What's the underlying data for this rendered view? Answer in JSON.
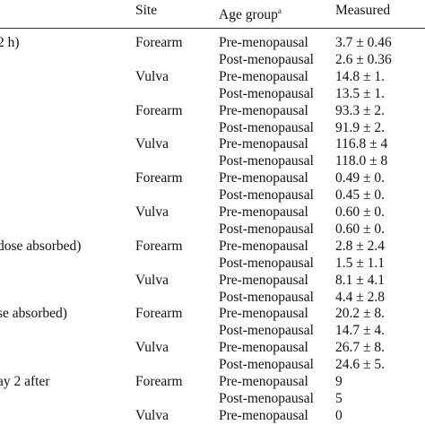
{
  "header": {
    "site": "Site",
    "age_group": "Age group",
    "age_group_note": "a",
    "measured": "Measured"
  },
  "rows": [
    {
      "label": "2 h)",
      "site": "Forearm",
      "age": "Pre-menopausal",
      "value": "3.7 ± 0.46"
    },
    {
      "age": "Post-menopausal",
      "value": "2.6 ± 0.36"
    },
    {
      "site": "Vulva",
      "age": "Pre-menopausal",
      "value": "14.8 ± 1."
    },
    {
      "age": "Post-menopausal",
      "value": "13.5 ± 1."
    },
    {
      "site": "Forearm",
      "age": "Pre-menopausal",
      "value": "93.3 ± 2."
    },
    {
      "age": "Post-menopausal",
      "value": "91.9 ± 2."
    },
    {
      "site": "Vulva",
      "age": "Pre-menopausal",
      "value": "116.8 ± 4"
    },
    {
      "age": "Post-menopausal",
      "value": "118.0 ± 8"
    },
    {
      "site": "Forearm",
      "age": "Pre-menopausal",
      "value": "0.49 ± 0."
    },
    {
      "age": "Post-menopausal",
      "value": "0.45 ± 0."
    },
    {
      "site": "Vulva",
      "age": "Pre-menopausal",
      "value": "0.60 ± 0."
    },
    {
      "age": "Post-menopausal",
      "value": "0.60 ± 0."
    },
    {
      "label": "dose absorbed)",
      "site": "Forearm",
      "age": "Pre-menopausal",
      "value": "2.8 ± 2.4"
    },
    {
      "age": "Post-menopausal",
      "value": "1.5 ± 1.1"
    },
    {
      "site": "Vulva",
      "age": "Pre-menopausal",
      "value": "8.1 ± 4.1"
    },
    {
      "age": "Post-menopausal",
      "value": "4.4 ± 2.8"
    },
    {
      "label": "se absorbed)",
      "site": "Forearm",
      "age": "Pre-menopausal",
      "value": "20.2 ± 8."
    },
    {
      "age": "Post-menopausal",
      "value": "14.7 ± 4."
    },
    {
      "site": "Vulva",
      "age": "Pre-menopausal",
      "value": "26.7 ± 8."
    },
    {
      "age": "Post-menopausal",
      "value": "24.6 ± 5."
    },
    {
      "label": "ay 2 after",
      "site": "Forearm",
      "age": "Pre-menopausal",
      "value": "9"
    },
    {
      "age": "Post-menopausal",
      "value": "5"
    },
    {
      "site": "Vulva",
      "age": "Pre-menopausal",
      "value": "0"
    }
  ]
}
